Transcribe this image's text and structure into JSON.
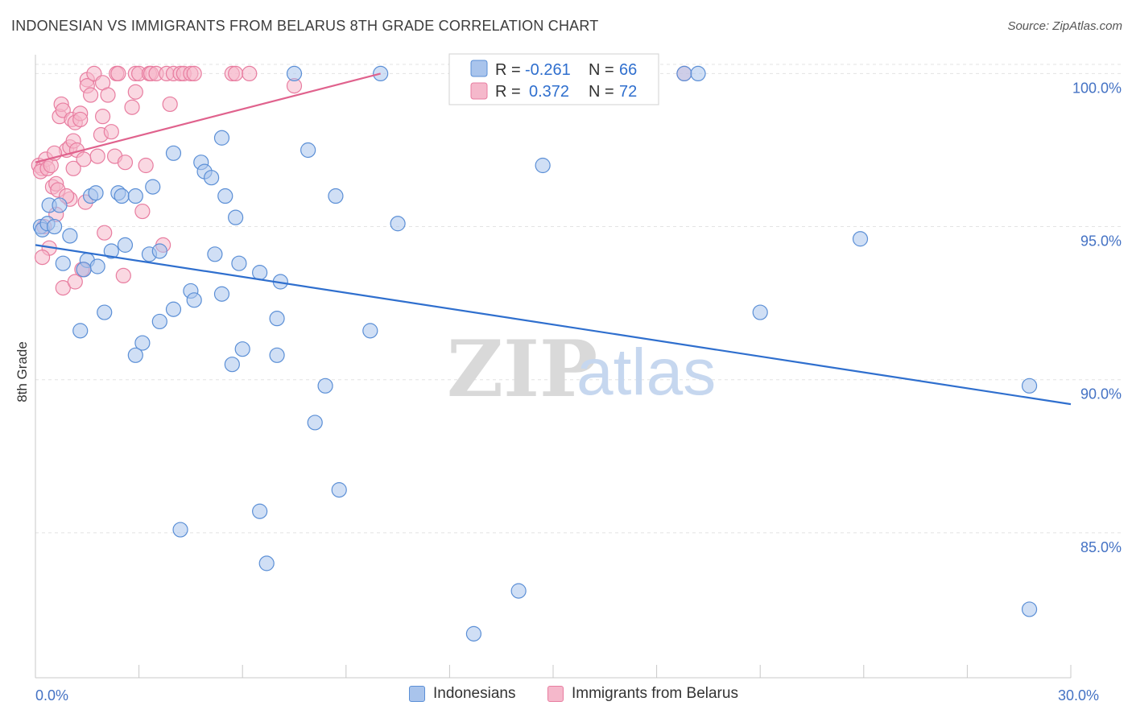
{
  "title": "INDONESIAN VS IMMIGRANTS FROM BELARUS 8TH GRADE CORRELATION CHART",
  "source": "Source: ZipAtlas.com",
  "watermark": {
    "zip": "ZIP",
    "atlas": "atlas"
  },
  "legend_box": [
    {
      "r_label": "R =",
      "r_value": "-0.261",
      "n_label": "N =",
      "n_value": "66"
    },
    {
      "r_label": "R =",
      "r_value": "0.372",
      "n_label": "N =",
      "n_value": "72"
    }
  ],
  "colors": {
    "blue_fill": "#a9c4ec",
    "blue_stroke": "#5b8fd6",
    "blue_line": "#2f6fce",
    "pink_fill": "#f5b8cb",
    "pink_stroke": "#e87da0",
    "pink_line": "#e0628d",
    "tick_text": "#4472c4",
    "grid": "#e3e3e3"
  },
  "chart_data": {
    "type": "scatter",
    "title": "INDONESIAN VS IMMIGRANTS FROM BELARUS 8TH GRADE CORRELATION CHART",
    "xlabel": "",
    "ylabel": "8th Grade",
    "xlim": [
      0,
      30
    ],
    "ylim": [
      80.5,
      100.3
    ],
    "x_tick_labels": [
      {
        "value": 0,
        "label": "0.0%"
      },
      {
        "value": 30,
        "label": "30.0%"
      }
    ],
    "y_tick_labels": [
      {
        "value": 100,
        "label": "100.0%"
      },
      {
        "value": 95,
        "label": "95.0%"
      },
      {
        "value": 90,
        "label": "90.0%"
      },
      {
        "value": 85,
        "label": "85.0%"
      }
    ],
    "series": [
      {
        "name": "Indonesians",
        "color": "blue",
        "trend": {
          "x": [
            0,
            30
          ],
          "y": [
            94.4,
            89.2
          ]
        },
        "points": [
          [
            0.15,
            95.0
          ],
          [
            0.2,
            94.9
          ],
          [
            0.35,
            95.1
          ],
          [
            0.55,
            95.0
          ],
          [
            0.4,
            95.7
          ],
          [
            0.7,
            95.7
          ],
          [
            1.0,
            94.7
          ],
          [
            0.8,
            93.8
          ],
          [
            1.5,
            93.9
          ],
          [
            1.8,
            93.7
          ],
          [
            1.4,
            93.6
          ],
          [
            2.2,
            94.2
          ],
          [
            2.6,
            94.4
          ],
          [
            1.6,
            96.0
          ],
          [
            1.75,
            96.1
          ],
          [
            2.4,
            96.1
          ],
          [
            2.5,
            96.0
          ],
          [
            2.9,
            96.0
          ],
          [
            3.3,
            94.1
          ],
          [
            3.6,
            94.2
          ],
          [
            3.4,
            96.3
          ],
          [
            4.0,
            97.4
          ],
          [
            4.5,
            92.9
          ],
          [
            4.6,
            92.6
          ],
          [
            4.0,
            92.3
          ],
          [
            3.6,
            91.9
          ],
          [
            3.1,
            91.2
          ],
          [
            2.9,
            90.8
          ],
          [
            2.0,
            92.2
          ],
          [
            1.3,
            91.6
          ],
          [
            4.8,
            97.1
          ],
          [
            4.9,
            96.8
          ],
          [
            5.1,
            96.6
          ],
          [
            5.4,
            97.9
          ],
          [
            5.5,
            96.0
          ],
          [
            5.2,
            94.1
          ],
          [
            5.4,
            92.8
          ],
          [
            5.8,
            95.3
          ],
          [
            5.9,
            93.8
          ],
          [
            6.0,
            91.0
          ],
          [
            5.7,
            90.5
          ],
          [
            6.5,
            93.5
          ],
          [
            7.1,
            93.2
          ],
          [
            7.0,
            92.0
          ],
          [
            7.0,
            90.8
          ],
          [
            7.5,
            100.0
          ],
          [
            7.9,
            97.5
          ],
          [
            8.1,
            88.6
          ],
          [
            8.4,
            89.8
          ],
          [
            8.7,
            96.0
          ],
          [
            8.8,
            86.4
          ],
          [
            9.7,
            91.6
          ],
          [
            10.0,
            100.0
          ],
          [
            10.5,
            95.1
          ],
          [
            6.5,
            85.7
          ],
          [
            6.7,
            84.0
          ],
          [
            4.2,
            85.1
          ],
          [
            14.0,
            83.1
          ],
          [
            12.7,
            81.7
          ],
          [
            14.7,
            97.0
          ],
          [
            18.8,
            100.0
          ],
          [
            19.2,
            100.0
          ],
          [
            21.0,
            92.2
          ],
          [
            23.9,
            94.6
          ],
          [
            28.8,
            89.8
          ],
          [
            28.8,
            82.5
          ]
        ]
      },
      {
        "name": "Immigrants from Belarus",
        "color": "pink",
        "trend": {
          "x": [
            0,
            10.0
          ],
          "y": [
            97.1,
            100.0
          ]
        },
        "points": [
          [
            0.1,
            97.0
          ],
          [
            0.2,
            96.9
          ],
          [
            0.3,
            97.2
          ],
          [
            0.15,
            96.8
          ],
          [
            0.35,
            96.9
          ],
          [
            0.45,
            97.0
          ],
          [
            0.25,
            95.0
          ],
          [
            0.4,
            94.3
          ],
          [
            0.2,
            94.0
          ],
          [
            0.5,
            96.3
          ],
          [
            0.6,
            96.4
          ],
          [
            0.6,
            95.4
          ],
          [
            0.7,
            98.6
          ],
          [
            0.75,
            99.0
          ],
          [
            0.8,
            98.8
          ],
          [
            0.9,
            97.5
          ],
          [
            1.0,
            97.6
          ],
          [
            1.05,
            98.5
          ],
          [
            1.1,
            97.8
          ],
          [
            1.1,
            96.9
          ],
          [
            1.15,
            98.4
          ],
          [
            1.2,
            97.5
          ],
          [
            1.3,
            98.7
          ],
          [
            1.3,
            98.5
          ],
          [
            1.4,
            97.2
          ],
          [
            1.4,
            93.6
          ],
          [
            1.45,
            95.8
          ],
          [
            1.5,
            99.8
          ],
          [
            1.5,
            99.6
          ],
          [
            1.6,
            99.3
          ],
          [
            1.7,
            100.0
          ],
          [
            1.8,
            97.3
          ],
          [
            1.9,
            98.0
          ],
          [
            1.95,
            98.6
          ],
          [
            1.95,
            99.7
          ],
          [
            2.0,
            94.8
          ],
          [
            2.1,
            99.3
          ],
          [
            2.2,
            98.1
          ],
          [
            2.3,
            97.3
          ],
          [
            2.35,
            100.0
          ],
          [
            2.4,
            100.0
          ],
          [
            2.55,
            93.4
          ],
          [
            2.6,
            97.1
          ],
          [
            2.8,
            98.9
          ],
          [
            2.9,
            99.4
          ],
          [
            2.9,
            100.0
          ],
          [
            3.0,
            100.0
          ],
          [
            3.1,
            95.5
          ],
          [
            3.2,
            97.0
          ],
          [
            3.3,
            100.0
          ],
          [
            3.35,
            100.0
          ],
          [
            3.5,
            100.0
          ],
          [
            3.7,
            94.4
          ],
          [
            3.8,
            100.0
          ],
          [
            3.9,
            99.0
          ],
          [
            4.0,
            100.0
          ],
          [
            4.2,
            100.0
          ],
          [
            4.3,
            100.0
          ],
          [
            4.5,
            100.0
          ],
          [
            4.6,
            100.0
          ],
          [
            5.7,
            100.0
          ],
          [
            5.8,
            100.0
          ],
          [
            6.2,
            100.0
          ],
          [
            7.5,
            99.6
          ],
          [
            18.8,
            100.0
          ],
          [
            0.8,
            93.0
          ],
          [
            1.15,
            93.2
          ],
          [
            1.35,
            93.6
          ],
          [
            1.0,
            95.9
          ],
          [
            0.55,
            97.4
          ],
          [
            0.65,
            96.2
          ],
          [
            0.9,
            96.0
          ]
        ]
      }
    ]
  },
  "bottom_legend": [
    {
      "label": "Indonesians"
    },
    {
      "label": "Immigrants from Belarus"
    }
  ]
}
